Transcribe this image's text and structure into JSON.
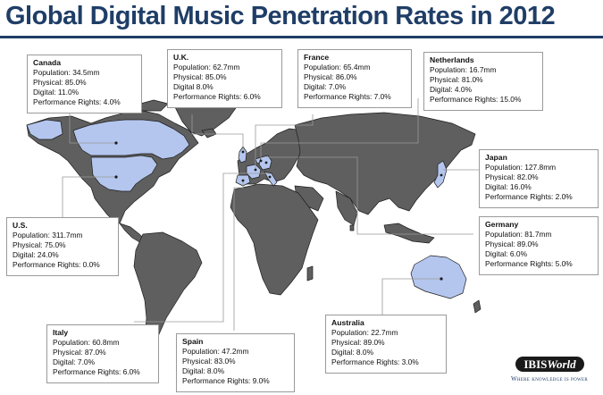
{
  "title": "Global Digital Music Penetration Rates in 2012",
  "colors": {
    "title": "#1f3e67",
    "land": "#5f5f5f",
    "highlight": "#b4c6ee",
    "border": "#1e1e1e"
  },
  "highlighted_countries": [
    "Canada",
    "U.S.",
    "U.K.",
    "France",
    "Netherlands",
    "Germany",
    "Italy",
    "Spain",
    "Japan",
    "Australia"
  ],
  "countries": [
    {
      "name": "Canada",
      "population": "Population: 34.5mm",
      "physical": "Physical: 85.0%",
      "digital": "Digital: 11.0%",
      "rights": "Performance Rights: 4.0%"
    },
    {
      "name": "U.K.",
      "population": "Population: 62.7mm",
      "physical": "Physical: 85.0%",
      "digital": "Digital  8.0%",
      "rights": "Performance Rights:  6.0%"
    },
    {
      "name": "France",
      "population": "Population: 65.4mm",
      "physical": "Physical:  86.0%",
      "digital": "Digital:  7.0%",
      "rights": "Performance Rights:  7.0%"
    },
    {
      "name": "Netherlands",
      "population": "Population: 16.7mm",
      "physical": "Physical:  81.0%",
      "digital": "Digital:  4.0%",
      "rights": "Performance Rights:  15.0%"
    },
    {
      "name": "Japan",
      "population": "Population: 127.8mm",
      "physical": "Physical:  82.0%",
      "digital": "Digital:  16.0%",
      "rights": "Performance Rights:  2.0%"
    },
    {
      "name": "U.S.",
      "population": "Population: 311.7mm",
      "physical": "Physical:  75.0%",
      "digital": "Digital:  24.0%",
      "rights": "Performance Rights:  0.0%"
    },
    {
      "name": "Germany",
      "population": "Population: 81.7mm",
      "physical": "Physical:  89.0%",
      "digital": "Digital:  6.0%",
      "rights": "Performance Rights:  5.0%"
    },
    {
      "name": "Italy",
      "population": "Population: 60.8mm",
      "physical": "Physical:  87.0%",
      "digital": "Digital:  7.0%",
      "rights": "Performance Rights:  6.0%"
    },
    {
      "name": "Spain",
      "population": "Population: 47.2mm",
      "physical": "Physical:  83.0%",
      "digital": "Digital:  8.0%",
      "rights": "Performance Rights:  9.0%"
    },
    {
      "name": "Australia",
      "population": "Population: 22.7mm",
      "physical": "Physical:  89.0%",
      "digital": "Digital:  8.0%",
      "rights": "Performance Rights:  3.0%"
    }
  ],
  "logo": {
    "ibis": "IBIS",
    "world": "World",
    "tagline": "Where knowledge is power"
  }
}
